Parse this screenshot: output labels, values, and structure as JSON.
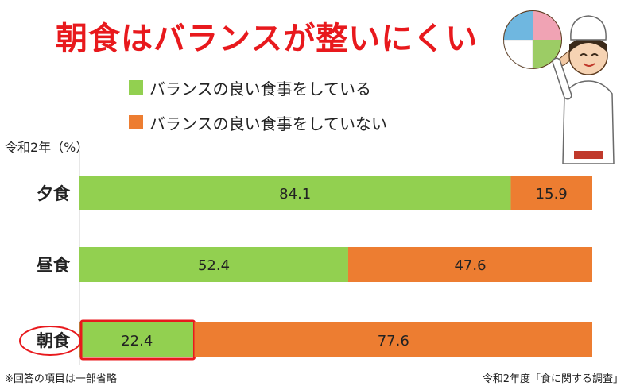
{
  "title": "朝食はバランスが整いにくい",
  "unit_label": "令和2年（%）",
  "footnote": "※回答の項目は一部省略",
  "source": "令和2年度「食に関する調査」",
  "colors": {
    "balanced": "#92d050",
    "unbalanced": "#ed7d31",
    "title": "#e8191d",
    "highlight": "#e8191d"
  },
  "chart_data": {
    "type": "bar",
    "orientation": "horizontal",
    "stacked": true,
    "categories": [
      "夕食",
      "昼食",
      "朝食"
    ],
    "series": [
      {
        "name": "バランスの良い食事をしている",
        "values": [
          84.1,
          52.4,
          22.4
        ]
      },
      {
        "name": "バランスの良い食事をしていない",
        "values": [
          15.9,
          47.6,
          77.6
        ]
      }
    ],
    "xlim": [
      0,
      100
    ],
    "grid": false,
    "legend": "top",
    "highlight": {
      "category": "朝食",
      "series": "バランスの良い食事をしている"
    }
  }
}
